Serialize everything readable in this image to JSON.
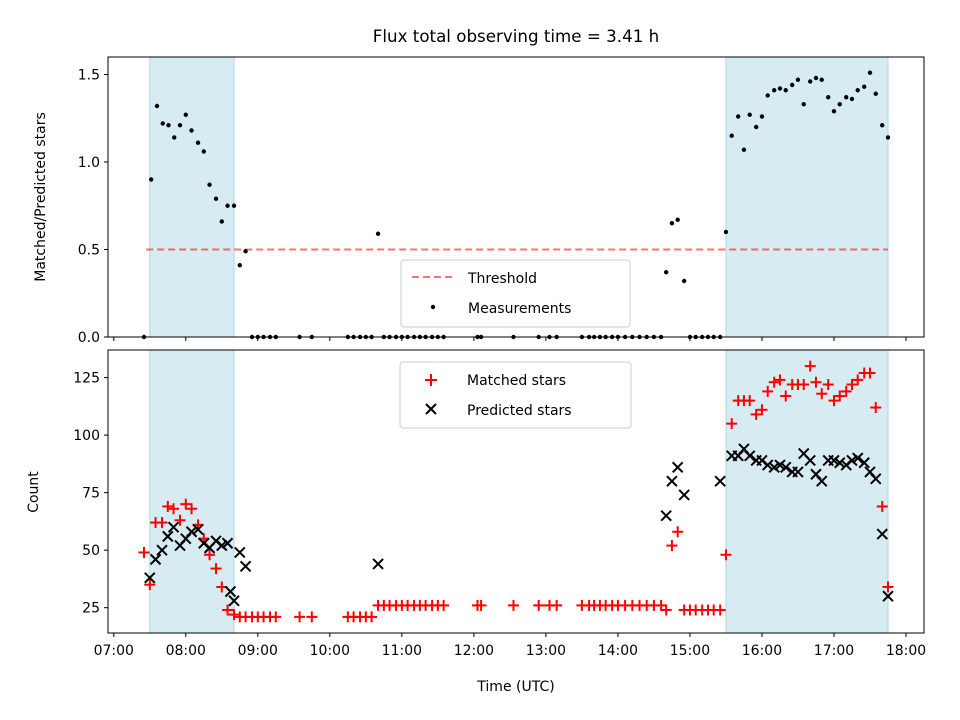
{
  "title": "Flux total observing time = 3.41 h",
  "colors": {
    "shade": "#add8e6",
    "threshold": "#ff0000",
    "measurements": "#000000",
    "matched": "#ff0000",
    "predicted": "#000000"
  },
  "chart_data": [
    {
      "type": "scatter",
      "ylabel": "Matched/Predicted stars",
      "xlim": [
        6.92,
        18.25
      ],
      "ylim": [
        0,
        1.6
      ],
      "yticks": [
        0.0,
        0.5,
        1.0,
        1.5
      ],
      "ytick_labels": [
        "0.0",
        "0.5",
        "1.0",
        "1.5"
      ],
      "shaded_intervals": [
        [
          7.5,
          8.67
        ],
        [
          15.5,
          17.75
        ]
      ],
      "threshold": {
        "name": "Threshold",
        "value": 0.5,
        "xrange": [
          7.45,
          17.75
        ]
      },
      "legend": {
        "loc": "lower center",
        "entries": [
          "Threshold",
          "Measurements"
        ]
      },
      "series": [
        {
          "name": "Measurements",
          "marker": "dot",
          "points": [
            [
              7.42,
              0.0
            ],
            [
              7.52,
              0.9
            ],
            [
              7.6,
              1.32
            ],
            [
              7.68,
              1.22
            ],
            [
              7.76,
              1.21
            ],
            [
              7.84,
              1.14
            ],
            [
              7.92,
              1.21
            ],
            [
              8.0,
              1.27
            ],
            [
              8.08,
              1.18
            ],
            [
              8.17,
              1.11
            ],
            [
              8.25,
              1.06
            ],
            [
              8.33,
              0.87
            ],
            [
              8.42,
              0.79
            ],
            [
              8.5,
              0.66
            ],
            [
              8.58,
              0.75
            ],
            [
              8.67,
              0.75
            ],
            [
              8.75,
              0.41
            ],
            [
              8.83,
              0.49
            ],
            [
              8.92,
              0.0
            ],
            [
              9.0,
              0.0
            ],
            [
              9.08,
              0.0
            ],
            [
              9.17,
              0.0
            ],
            [
              9.25,
              0.0
            ],
            [
              9.58,
              0.0
            ],
            [
              9.75,
              0.0
            ],
            [
              10.25,
              0.0
            ],
            [
              10.33,
              0.0
            ],
            [
              10.42,
              0.0
            ],
            [
              10.5,
              0.0
            ],
            [
              10.58,
              0.0
            ],
            [
              10.67,
              0.59
            ],
            [
              10.75,
              0.0
            ],
            [
              10.83,
              0.0
            ],
            [
              10.92,
              0.0
            ],
            [
              11.0,
              0.0
            ],
            [
              11.08,
              0.0
            ],
            [
              11.17,
              0.0
            ],
            [
              11.25,
              0.0
            ],
            [
              11.33,
              0.0
            ],
            [
              11.42,
              0.0
            ],
            [
              11.5,
              0.0
            ],
            [
              11.58,
              0.0
            ],
            [
              12.05,
              0.0
            ],
            [
              12.1,
              0.0
            ],
            [
              12.55,
              0.0
            ],
            [
              12.9,
              0.0
            ],
            [
              13.05,
              0.0
            ],
            [
              13.15,
              0.0
            ],
            [
              13.5,
              0.0
            ],
            [
              13.6,
              0.0
            ],
            [
              13.67,
              0.0
            ],
            [
              13.75,
              0.0
            ],
            [
              13.83,
              0.0
            ],
            [
              13.92,
              0.0
            ],
            [
              14.0,
              0.0
            ],
            [
              14.1,
              0.0
            ],
            [
              14.2,
              0.0
            ],
            [
              14.3,
              0.0
            ],
            [
              14.4,
              0.0
            ],
            [
              14.5,
              0.0
            ],
            [
              14.6,
              0.0
            ],
            [
              14.67,
              0.37
            ],
            [
              14.75,
              0.65
            ],
            [
              14.83,
              0.67
            ],
            [
              14.92,
              0.32
            ],
            [
              15.0,
              0.0
            ],
            [
              15.08,
              0.0
            ],
            [
              15.17,
              0.0
            ],
            [
              15.25,
              0.0
            ],
            [
              15.33,
              0.0
            ],
            [
              15.42,
              0.0
            ],
            [
              15.5,
              0.6
            ],
            [
              15.58,
              1.15
            ],
            [
              15.67,
              1.26
            ],
            [
              15.75,
              1.07
            ],
            [
              15.83,
              1.27
            ],
            [
              15.92,
              1.2
            ],
            [
              16.0,
              1.26
            ],
            [
              16.08,
              1.38
            ],
            [
              16.17,
              1.41
            ],
            [
              16.25,
              1.42
            ],
            [
              16.33,
              1.41
            ],
            [
              16.42,
              1.44
            ],
            [
              16.5,
              1.47
            ],
            [
              16.58,
              1.33
            ],
            [
              16.67,
              1.46
            ],
            [
              16.75,
              1.48
            ],
            [
              16.83,
              1.47
            ],
            [
              16.92,
              1.37
            ],
            [
              17.0,
              1.29
            ],
            [
              17.08,
              1.33
            ],
            [
              17.17,
              1.37
            ],
            [
              17.25,
              1.36
            ],
            [
              17.33,
              1.41
            ],
            [
              17.42,
              1.43
            ],
            [
              17.5,
              1.51
            ],
            [
              17.58,
              1.39
            ],
            [
              17.67,
              1.21
            ],
            [
              17.75,
              1.14
            ]
          ]
        }
      ]
    },
    {
      "type": "scatter",
      "xlabel": "Time (UTC)",
      "ylabel": "Count",
      "xlim": [
        6.92,
        18.25
      ],
      "ylim": [
        14,
        137
      ],
      "yticks": [
        25,
        50,
        75,
        100,
        125
      ],
      "ytick_labels": [
        "25",
        "50",
        "75",
        "100",
        "125"
      ],
      "xticks": [
        7,
        8,
        9,
        10,
        11,
        12,
        13,
        14,
        15,
        16,
        17,
        18
      ],
      "xtick_labels": [
        "07:00",
        "08:00",
        "09:00",
        "10:00",
        "11:00",
        "12:00",
        "13:00",
        "14:00",
        "15:00",
        "16:00",
        "17:00",
        "18:00"
      ],
      "shaded_intervals": [
        [
          7.5,
          8.67
        ],
        [
          15.5,
          17.75
        ]
      ],
      "legend": {
        "loc": "upper center",
        "entries": [
          "Matched stars",
          "Predicted stars"
        ]
      },
      "series": [
        {
          "name": "Matched stars",
          "marker": "plus",
          "points": [
            [
              7.42,
              49
            ],
            [
              7.5,
              35
            ],
            [
              7.58,
              62
            ],
            [
              7.67,
              62
            ],
            [
              7.75,
              69
            ],
            [
              7.83,
              68
            ],
            [
              7.92,
              63
            ],
            [
              8.0,
              70
            ],
            [
              8.08,
              68
            ],
            [
              8.17,
              61
            ],
            [
              8.25,
              55
            ],
            [
              8.33,
              48
            ],
            [
              8.42,
              42
            ],
            [
              8.5,
              34
            ],
            [
              8.58,
              24
            ],
            [
              8.67,
              22
            ],
            [
              8.75,
              21
            ],
            [
              8.83,
              21
            ],
            [
              8.92,
              21
            ],
            [
              9.0,
              21
            ],
            [
              9.08,
              21
            ],
            [
              9.17,
              21
            ],
            [
              9.25,
              21
            ],
            [
              9.58,
              21
            ],
            [
              9.75,
              21
            ],
            [
              10.25,
              21
            ],
            [
              10.33,
              21
            ],
            [
              10.42,
              21
            ],
            [
              10.5,
              21
            ],
            [
              10.58,
              21
            ],
            [
              10.67,
              26
            ],
            [
              10.75,
              26
            ],
            [
              10.83,
              26
            ],
            [
              10.92,
              26
            ],
            [
              11.0,
              26
            ],
            [
              11.08,
              26
            ],
            [
              11.17,
              26
            ],
            [
              11.25,
              26
            ],
            [
              11.33,
              26
            ],
            [
              11.42,
              26
            ],
            [
              11.5,
              26
            ],
            [
              11.58,
              26
            ],
            [
              12.05,
              26
            ],
            [
              12.1,
              26
            ],
            [
              12.55,
              26
            ],
            [
              12.9,
              26
            ],
            [
              13.05,
              26
            ],
            [
              13.15,
              26
            ],
            [
              13.5,
              26
            ],
            [
              13.6,
              26
            ],
            [
              13.67,
              26
            ],
            [
              13.75,
              26
            ],
            [
              13.83,
              26
            ],
            [
              13.92,
              26
            ],
            [
              14.0,
              26
            ],
            [
              14.1,
              26
            ],
            [
              14.2,
              26
            ],
            [
              14.3,
              26
            ],
            [
              14.4,
              26
            ],
            [
              14.5,
              26
            ],
            [
              14.6,
              26
            ],
            [
              14.67,
              24
            ],
            [
              14.75,
              52
            ],
            [
              14.83,
              58
            ],
            [
              14.92,
              24
            ],
            [
              15.0,
              24
            ],
            [
              15.08,
              24
            ],
            [
              15.17,
              24
            ],
            [
              15.25,
              24
            ],
            [
              15.33,
              24
            ],
            [
              15.42,
              24
            ],
            [
              15.5,
              48
            ],
            [
              15.58,
              105
            ],
            [
              15.67,
              115
            ],
            [
              15.75,
              115
            ],
            [
              15.83,
              115
            ],
            [
              15.92,
              109
            ],
            [
              16.0,
              111
            ],
            [
              16.08,
              119
            ],
            [
              16.17,
              123
            ],
            [
              16.25,
              124
            ],
            [
              16.33,
              117
            ],
            [
              16.42,
              122
            ],
            [
              16.5,
              122
            ],
            [
              16.58,
              122
            ],
            [
              16.67,
              130
            ],
            [
              16.75,
              123
            ],
            [
              16.83,
              118
            ],
            [
              16.92,
              122
            ],
            [
              17.0,
              115
            ],
            [
              17.08,
              117
            ],
            [
              17.17,
              119
            ],
            [
              17.25,
              122
            ],
            [
              17.33,
              124
            ],
            [
              17.42,
              127
            ],
            [
              17.5,
              127
            ],
            [
              17.58,
              112
            ],
            [
              17.67,
              69
            ],
            [
              17.75,
              34
            ]
          ]
        },
        {
          "name": "Predicted stars",
          "marker": "x",
          "points": [
            [
              7.5,
              38
            ],
            [
              7.58,
              46
            ],
            [
              7.67,
              50
            ],
            [
              7.75,
              56
            ],
            [
              7.83,
              60
            ],
            [
              7.92,
              52
            ],
            [
              8.0,
              55
            ],
            [
              8.08,
              58
            ],
            [
              8.17,
              59
            ],
            [
              8.25,
              53
            ],
            [
              8.33,
              51
            ],
            [
              8.42,
              54
            ],
            [
              8.5,
              52
            ],
            [
              8.58,
              53
            ],
            [
              8.62,
              32
            ],
            [
              8.67,
              28
            ],
            [
              8.75,
              49
            ],
            [
              8.83,
              43
            ],
            [
              10.67,
              44
            ],
            [
              14.67,
              65
            ],
            [
              14.75,
              80
            ],
            [
              14.83,
              86
            ],
            [
              14.92,
              74
            ],
            [
              15.42,
              80
            ],
            [
              15.58,
              91
            ],
            [
              15.67,
              91
            ],
            [
              15.75,
              94
            ],
            [
              15.83,
              91
            ],
            [
              15.92,
              89
            ],
            [
              16.0,
              89
            ],
            [
              16.08,
              87
            ],
            [
              16.17,
              86
            ],
            [
              16.25,
              87
            ],
            [
              16.33,
              86
            ],
            [
              16.42,
              84
            ],
            [
              16.5,
              84
            ],
            [
              16.58,
              92
            ],
            [
              16.67,
              89
            ],
            [
              16.75,
              83
            ],
            [
              16.83,
              80
            ],
            [
              16.92,
              89
            ],
            [
              17.0,
              89
            ],
            [
              17.08,
              88
            ],
            [
              17.17,
              87
            ],
            [
              17.25,
              89
            ],
            [
              17.33,
              90
            ],
            [
              17.42,
              88
            ],
            [
              17.5,
              84
            ],
            [
              17.58,
              81
            ],
            [
              17.67,
              57
            ],
            [
              17.75,
              30
            ]
          ]
        }
      ]
    }
  ]
}
